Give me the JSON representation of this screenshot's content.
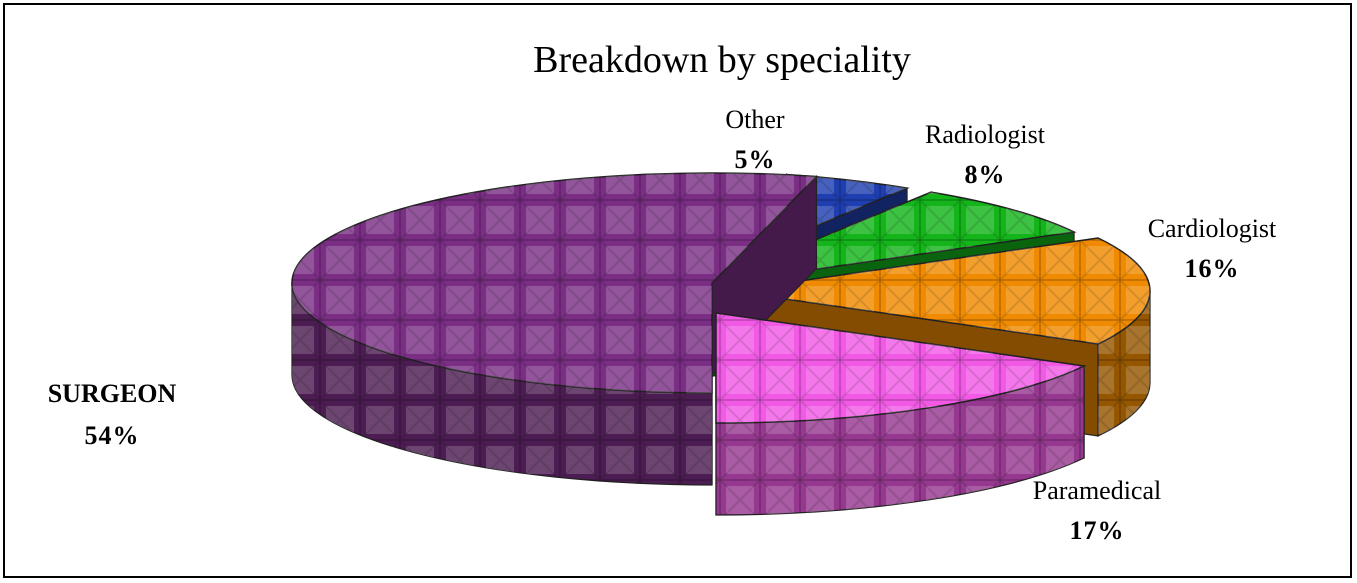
{
  "chart_data": {
    "type": "pie",
    "style": "3d-exploded",
    "title": "Breakdown by speciality",
    "legend": "none",
    "slices": [
      {
        "name": "SURGEON",
        "value": 54,
        "label": "54%",
        "color": "#7a2f85"
      },
      {
        "name": "Other",
        "value": 5,
        "label": "5%",
        "color": "#1f3fb0"
      },
      {
        "name": "Radiologist",
        "value": 8,
        "label": "8%",
        "color": "#13b51a"
      },
      {
        "name": "Cardiologist",
        "value": 16,
        "label": "16%",
        "color": "#f08a00"
      },
      {
        "name": "Paramedical",
        "value": 17,
        "label": "17%",
        "color": "#f25ae6"
      }
    ]
  }
}
